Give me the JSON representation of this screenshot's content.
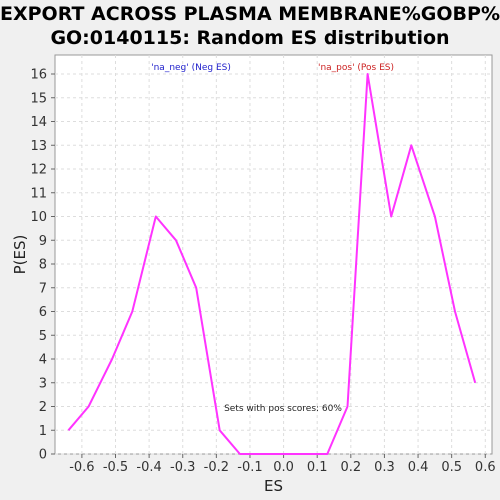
{
  "chart_data": {
    "type": "line",
    "title_line1": "EXPORT ACROSS PLASMA MEMBRANE%GOBP%",
    "title_line2": "GO:0140115: Random ES distribution",
    "xlabel": "ES",
    "ylabel": "P(ES)",
    "xlim": [
      -0.68,
      0.62
    ],
    "ylim": [
      0,
      16.8
    ],
    "xticks": [
      "-0.6",
      "-0.5",
      "-0.4",
      "-0.3",
      "-0.2",
      "-0.1",
      "0.0",
      "0.1",
      "0.2",
      "0.3",
      "0.4",
      "0.5",
      "0.6"
    ],
    "xtick_values": [
      -0.6,
      -0.5,
      -0.4,
      -0.3,
      -0.2,
      -0.1,
      0.0,
      0.1,
      0.2,
      0.3,
      0.4,
      0.5,
      0.6
    ],
    "yticks": [
      0,
      1,
      2,
      3,
      4,
      5,
      6,
      7,
      8,
      9,
      10,
      11,
      12,
      13,
      14,
      15,
      16
    ],
    "grid": true,
    "legend_neg": "'na_neg' (Neg ES)",
    "legend_pos": "'na_pos' (Pos ES)",
    "annotation": "Sets with pos scores: 60%",
    "line_color": "#ff33ff",
    "series": [
      {
        "x": [
          -0.64,
          -0.58,
          -0.51,
          -0.45,
          -0.38,
          -0.32,
          -0.26,
          -0.19,
          -0.13,
          -0.06,
          0.0,
          0.06,
          0.13,
          0.19,
          0.25,
          0.32,
          0.38,
          0.45,
          0.51,
          0.57
        ],
        "values": [
          1,
          2,
          4,
          6,
          10,
          9,
          7,
          1,
          0,
          0,
          0,
          0,
          0,
          2,
          16,
          10,
          13,
          10,
          6,
          3
        ]
      }
    ]
  }
}
